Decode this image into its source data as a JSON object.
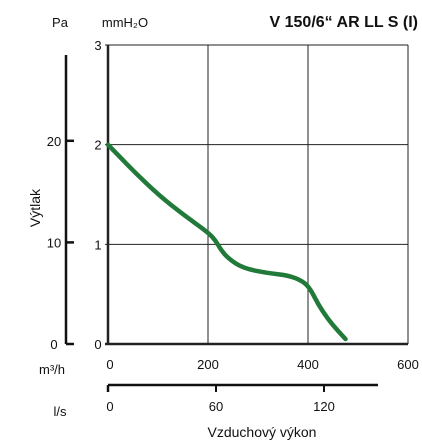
{
  "chart_data": {
    "type": "line",
    "title": "V 150/6“ AR LL S (I)",
    "ylabel": "Výtlak",
    "xlabel": "Vzduchový výkon",
    "x_unit_primary": "m³/h",
    "x_unit_secondary": "l/s",
    "y_unit_primary": "mmH₂O",
    "y_unit_secondary": "Pa",
    "xlim": [
      0,
      600
    ],
    "ylim": [
      0,
      3
    ],
    "x_ticks": [
      "0",
      "200",
      "400",
      "600"
    ],
    "y_ticks": [
      "0",
      "1",
      "2",
      "3"
    ],
    "pa_ticks": [
      "0",
      "10",
      "20"
    ],
    "ls_ticks": [
      "0",
      "60",
      "120"
    ],
    "grid": true,
    "series": [
      {
        "color": "#217a3a",
        "x": [
          0,
          50,
          100,
          150,
          200,
          215,
          225,
          240,
          270,
          320,
          360,
          390,
          405,
          420,
          440,
          460,
          475
        ],
        "y": [
          2.0,
          1.74,
          1.5,
          1.3,
          1.12,
          1.04,
          0.95,
          0.86,
          0.76,
          0.71,
          0.69,
          0.63,
          0.55,
          0.4,
          0.25,
          0.13,
          0.05
        ]
      }
    ]
  }
}
